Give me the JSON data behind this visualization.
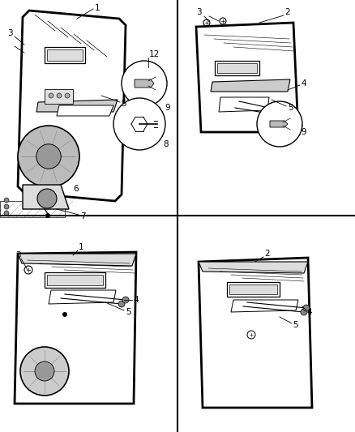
{
  "bg_color": "#ffffff",
  "line_color": "#000000",
  "fig_width": 4.38,
  "fig_height": 5.33,
  "dpi": 100
}
